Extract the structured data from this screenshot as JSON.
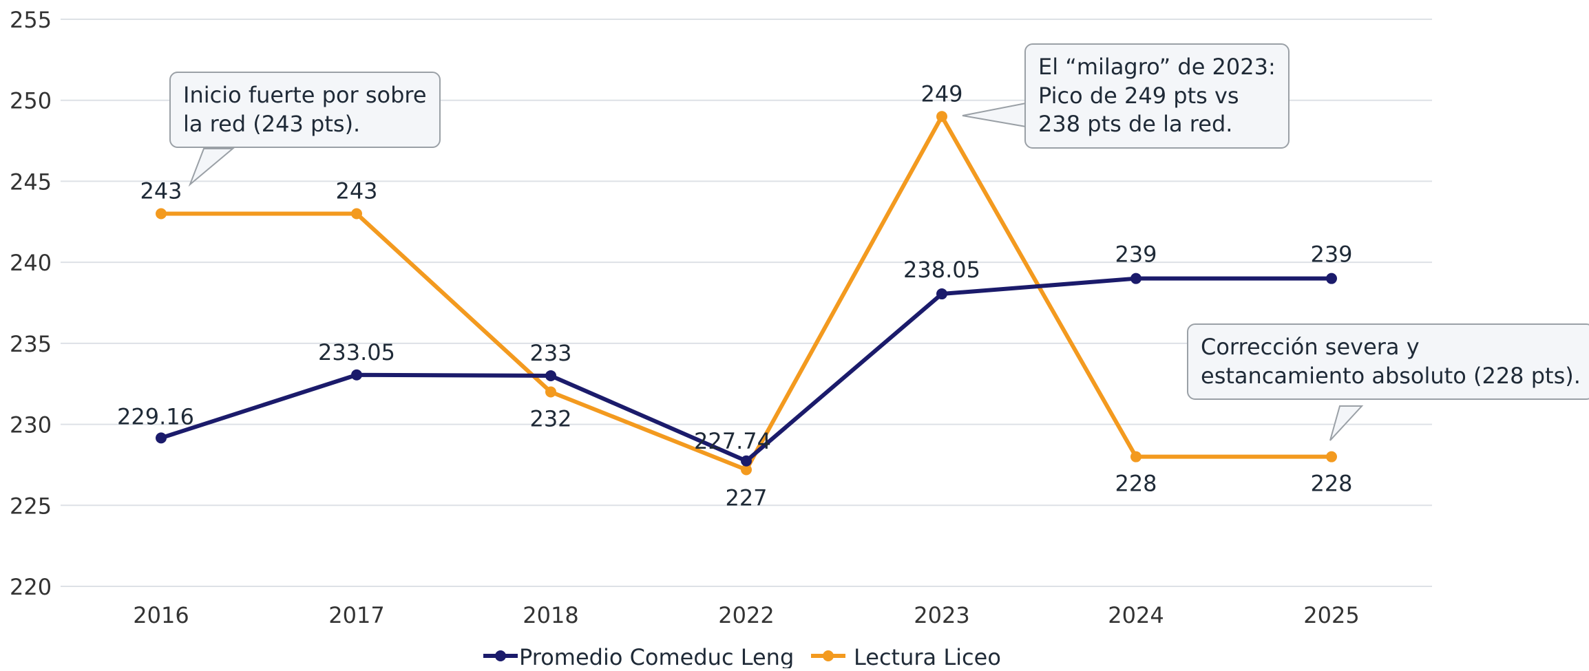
{
  "chart_data": {
    "type": "line",
    "categories": [
      "2016",
      "2017",
      "2018",
      "2022",
      "2023",
      "2024",
      "2025"
    ],
    "y_ticks": [
      "220",
      "225",
      "230",
      "235",
      "240",
      "245",
      "250",
      "255"
    ],
    "ylim": [
      220,
      255
    ],
    "grid": true,
    "legend_position": "bottom",
    "series": [
      {
        "name": "Promedio Comeduc Leng",
        "color": "#1b1b6b",
        "values": [
          229.16,
          233.05,
          233,
          227.74,
          238.05,
          239,
          239
        ],
        "labels": [
          "229.16",
          "233.05",
          "233",
          "227.74",
          "238.05",
          "239",
          "239"
        ]
      },
      {
        "name": "Lectura Liceo",
        "color": "#f39a1f",
        "values": [
          243,
          243,
          232,
          227.2,
          249,
          228,
          228
        ],
        "labels": [
          "243",
          "243",
          "232",
          "227",
          "249",
          "228",
          "228"
        ]
      }
    ],
    "annotations": [
      {
        "lines": [
          "Inicio fuerte por sobre",
          "la red (243 pts)."
        ]
      },
      {
        "lines": [
          "El “milagro” de 2023:",
          "Pico de 249 pts vs",
          "238 pts de la red."
        ]
      },
      {
        "lines": [
          "Corrección severa y",
          "estancamiento absoluto (228 pts)."
        ]
      }
    ]
  }
}
